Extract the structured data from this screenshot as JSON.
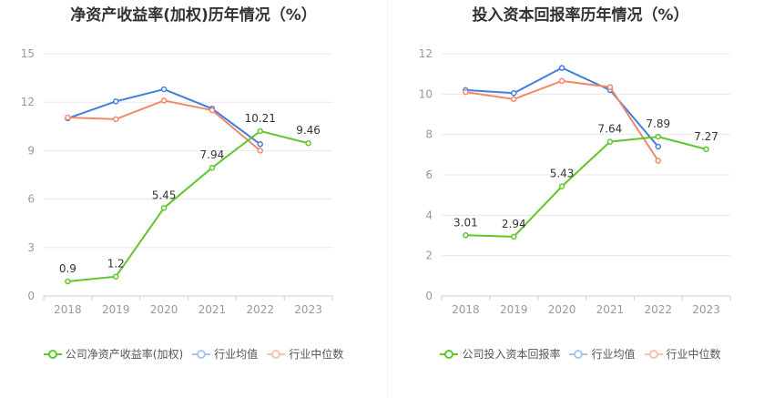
{
  "colors": {
    "company": "#5dc72b",
    "industry_avg": "#3f7fe0",
    "industry_median": "#f0896a",
    "industry_avg_legend": "#a9c4ee",
    "industry_median_legend": "#f6c3b1",
    "grid": "#e8e8e8",
    "axis_text": "#999999",
    "label_text": "#333333"
  },
  "chart_data": [
    {
      "type": "line",
      "title": "净资产收益率(加权)历年情况（%）",
      "categories": [
        "2018",
        "2019",
        "2020",
        "2021",
        "2022",
        "2023"
      ],
      "ylim": [
        0,
        15
      ],
      "yticks": [
        "0",
        "3",
        "6",
        "9",
        "12",
        "15"
      ],
      "grid": true,
      "legend_position": "bottom",
      "series": [
        {
          "name": "公司净资产收益率(加权)",
          "color_key": "company",
          "values": [
            0.9,
            1.2,
            5.45,
            7.94,
            10.21,
            9.46
          ],
          "labels": [
            "0.9",
            "1.2",
            "5.45",
            "7.94",
            "10.21",
            "9.46"
          ]
        },
        {
          "name": "行业均值",
          "color_key": "industry_avg",
          "values": [
            11.0,
            12.05,
            12.8,
            11.6,
            9.4,
            null
          ]
        },
        {
          "name": "行业中位数",
          "color_key": "industry_median",
          "values": [
            11.05,
            10.95,
            12.1,
            11.5,
            9.0,
            null
          ]
        }
      ]
    },
    {
      "type": "line",
      "title": "投入资本回报率历年情况（%）",
      "categories": [
        "2018",
        "2019",
        "2020",
        "2021",
        "2022",
        "2023"
      ],
      "ylim": [
        0,
        12
      ],
      "yticks": [
        "0",
        "2",
        "4",
        "6",
        "8",
        "10",
        "12"
      ],
      "grid": true,
      "legend_position": "bottom",
      "series": [
        {
          "name": "公司投入资本回报率",
          "color_key": "company",
          "values": [
            3.01,
            2.94,
            5.43,
            7.64,
            7.89,
            7.27
          ],
          "labels": [
            "3.01",
            "2.94",
            "5.43",
            "7.64",
            "7.89",
            "7.27"
          ]
        },
        {
          "name": "行业均值",
          "color_key": "industry_avg",
          "values": [
            10.2,
            10.05,
            11.3,
            10.2,
            7.4,
            null
          ]
        },
        {
          "name": "行业中位数",
          "color_key": "industry_median",
          "values": [
            10.1,
            9.75,
            10.65,
            10.35,
            6.7,
            null
          ]
        }
      ]
    }
  ]
}
